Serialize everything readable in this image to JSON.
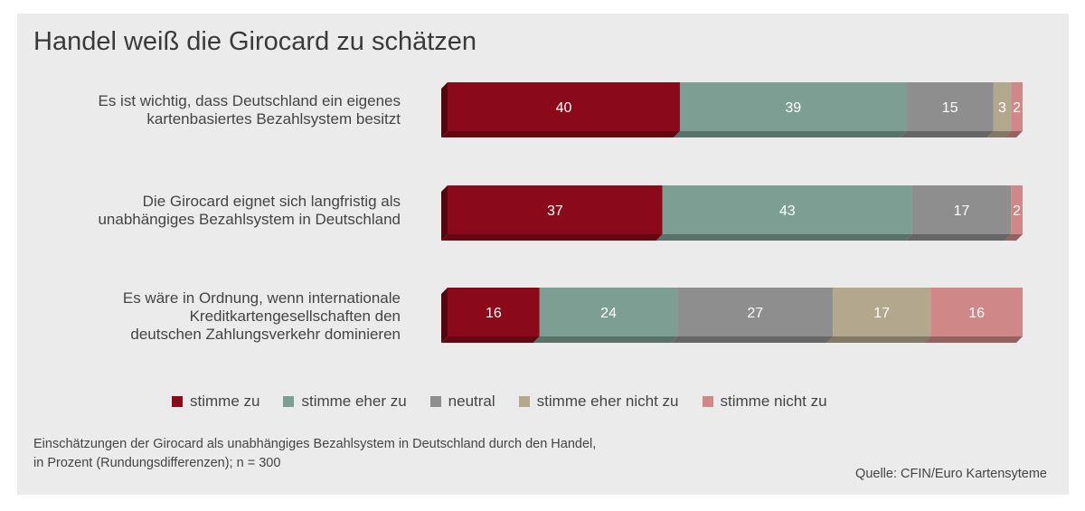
{
  "title": "Handel weiß die Girocard zu schätzen",
  "chart_data": {
    "type": "bar",
    "orientation": "horizontal",
    "stacked": true,
    "title": "Handel weiß die Girocard zu schätzen",
    "categories": [
      [
        "Es ist wichtig, dass Deutschland ein eigenes",
        "kartenbasiertes Bezahlsystem besitzt"
      ],
      [
        "Die Girocard eignet sich langfristig als",
        "unabhängiges Bezahlsystem in Deutschland"
      ],
      [
        "Es wäre in Ordnung, wenn internationale",
        "Kreditkartengesellschaften den",
        "deutschen Zahlungsverkehr dominieren"
      ]
    ],
    "series": [
      {
        "name": "stimme zu",
        "values": [
          40,
          37,
          16
        ],
        "color": "#8a0a1a"
      },
      {
        "name": "stimme eher zu",
        "values": [
          39,
          43,
          24
        ],
        "color": "#7d9e93"
      },
      {
        "name": "neutral",
        "values": [
          15,
          17,
          27
        ],
        "color": "#8e8e8e"
      },
      {
        "name": "stimme eher nicht zu",
        "values": [
          3,
          0,
          17
        ],
        "color": "#b3a78e"
      },
      {
        "name": "stimme nicht zu",
        "values": [
          2,
          2,
          16
        ],
        "color": "#d08787"
      }
    ],
    "value_labels": [
      [
        "40",
        "39",
        "15",
        "3",
        "2"
      ],
      [
        "37",
        "43",
        "17",
        "",
        "2"
      ],
      [
        "16",
        "24",
        "27",
        "17",
        "16"
      ]
    ],
    "legend_position": "bottom",
    "grid": false,
    "xlim": [
      0,
      100
    ]
  },
  "footnote": [
    "Einschätzungen der Girocard als unabhängiges Bezahlsystem in Deutschland durch den Handel,",
    "in Prozent (Rundungsdifferenzen); n = 300"
  ],
  "source": "Quelle: CFIN/Euro Kartensyteme"
}
